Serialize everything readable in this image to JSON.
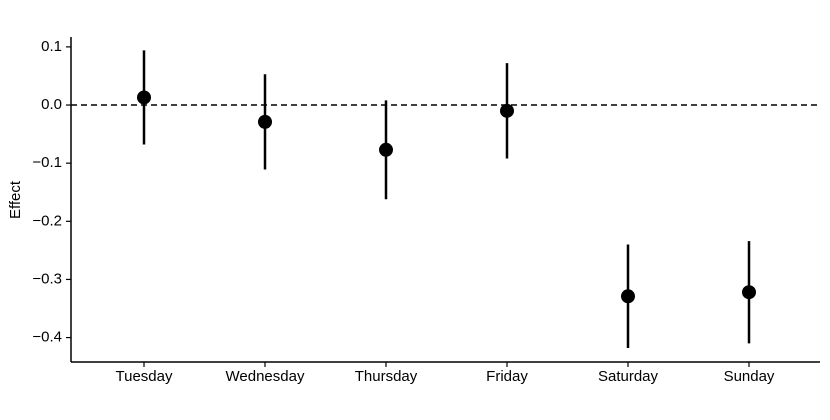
{
  "chart_data": {
    "type": "errorbar",
    "y_label": "Effect",
    "categories": [
      "Tuesday",
      "Wednesday",
      "Thursday",
      "Friday",
      "Saturday",
      "Sunday"
    ],
    "values": [
      0.013,
      -0.029,
      -0.077,
      -0.01,
      -0.329,
      -0.322
    ],
    "errors": [
      0.081,
      0.082,
      0.085,
      0.082,
      0.089,
      0.088
    ],
    "color": "#000000",
    "reference_line": 0,
    "ylim": [
      -0.442,
      0.117
    ],
    "yticks": [
      0.1,
      {
        "value": 0,
        "label": "0.0"
      },
      {
        "value": -0.1,
        "label": "−0.1"
      },
      {
        "value": -0.2,
        "label": "−0.2"
      },
      {
        "value": -0.3,
        "label": "−0.3"
      },
      {
        "value": -0.4,
        "label": "−0.4"
      }
    ],
    "grid": false
  }
}
